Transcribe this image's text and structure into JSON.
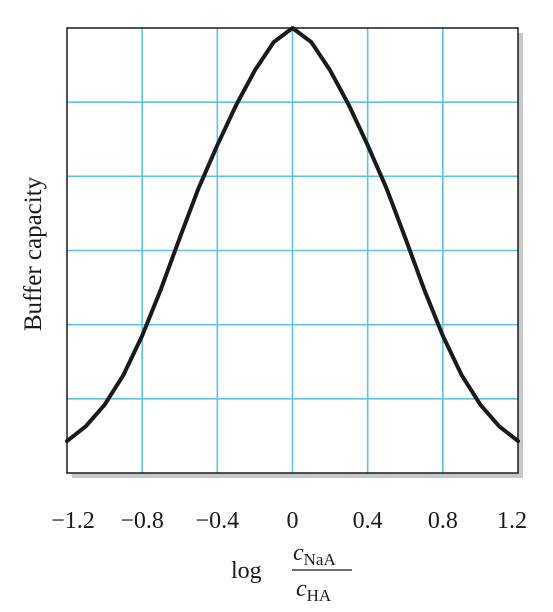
{
  "chart_data": {
    "type": "line",
    "ylabel": "Buffer capacity",
    "xlabel": {
      "prefix": "log",
      "numerator": {
        "symbol": "c",
        "subscript": "NaA"
      },
      "denominator": {
        "symbol": "c",
        "subscript": "HA"
      }
    },
    "x_ticks": [
      "−1.2",
      "−0.8",
      "−0.4",
      "0",
      "0.4",
      "0.8",
      "1.2"
    ],
    "xlim": [
      -1.2,
      1.2
    ],
    "ylim": [
      0,
      6
    ],
    "grid": true,
    "y_tick_labels_shown": false,
    "series": [
      {
        "x": [
          -1.2,
          -1.1,
          -1.0,
          -0.9,
          -0.8,
          -0.7,
          -0.6,
          -0.5,
          -0.4,
          -0.3,
          -0.2,
          -0.1,
          0.0,
          0.1,
          0.2,
          0.3,
          0.4,
          0.5,
          0.6,
          0.7,
          0.8,
          0.9,
          1.0,
          1.1,
          1.2
        ],
        "y": [
          0.43,
          0.63,
          0.92,
          1.32,
          1.85,
          2.48,
          3.17,
          3.84,
          4.42,
          4.96,
          5.43,
          5.81,
          6.0,
          5.81,
          5.43,
          4.96,
          4.42,
          3.84,
          3.17,
          2.48,
          1.85,
          1.32,
          0.92,
          0.63,
          0.43
        ]
      }
    ],
    "colors": {
      "grid": "#5bc4e6",
      "curve": "#1a1a1a",
      "frame": "#1a1a1a",
      "shadow": "#c8c8c8"
    }
  }
}
